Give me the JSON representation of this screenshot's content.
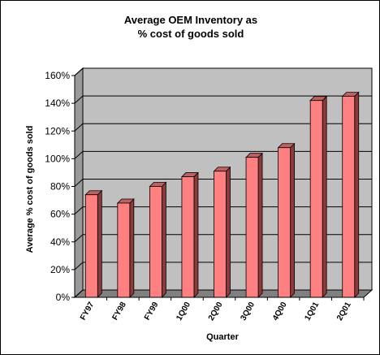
{
  "chart_data": {
    "type": "bar",
    "title_line1": "Average OEM Inventory as",
    "title_line2": "% cost of goods sold",
    "xlabel": "Quarter",
    "ylabel": "Average % cost of goods sold",
    "categories": [
      "FY97",
      "FY98",
      "FY99",
      "1Q00",
      "2Q00",
      "3Q00",
      "4Q00",
      "1Q01",
      "2Q01"
    ],
    "values": [
      74,
      68,
      80,
      87,
      91,
      101,
      108,
      142,
      145
    ],
    "ylim": [
      0,
      160
    ],
    "yticks": [
      0,
      20,
      40,
      60,
      80,
      100,
      120,
      140,
      160
    ],
    "ytick_labels": [
      "0%",
      "20%",
      "40%",
      "60%",
      "80%",
      "100%",
      "120%",
      "140%",
      "160%"
    ],
    "grid": true,
    "legend": "none",
    "colors": {
      "bar_front": "#ff8080",
      "bar_side": "#8c3a3a",
      "bar_top": "#c06060",
      "plot_wall": "#c0c0c0",
      "plot_floor": "#808080"
    }
  }
}
